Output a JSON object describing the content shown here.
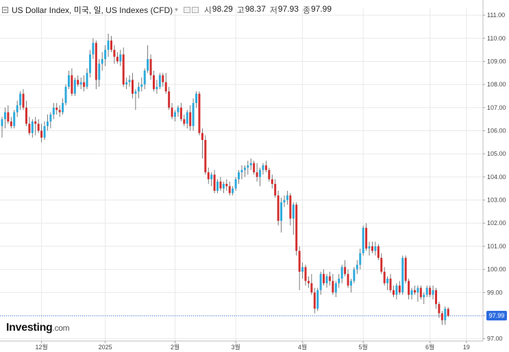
{
  "header": {
    "title": "US Dollar Index, 미국, 일, US Indexes (CFD)",
    "dropdown_glyph": "▾",
    "ohlc": [
      {
        "label": "시",
        "value": "98.29"
      },
      {
        "label": "고",
        "value": "98.37"
      },
      {
        "label": "저",
        "value": "97.93"
      },
      {
        "label": "종",
        "value": "97.99"
      }
    ]
  },
  "logo": {
    "brand": "Investing",
    "suffix": ".com"
  },
  "last_price_label": "97.99",
  "colors": {
    "up": "#2eaadc",
    "down": "#d32f2f",
    "wick": "#555555",
    "grid": "#e8e8e8",
    "price_line": "#2d6cdf"
  },
  "chart_data": {
    "type": "candlestick",
    "title": "US Dollar Index, 미국, 일, US Indexes (CFD)",
    "y_axis": {
      "side": "right",
      "min": 96.9,
      "max": 111.3,
      "ticks": [
        "97.00",
        "98.00",
        "99.00",
        "100.00",
        "101.00",
        "102.00",
        "103.00",
        "104.00",
        "105.00",
        "106.00",
        "107.00",
        "108.00",
        "109.00",
        "110.00",
        "111.00"
      ]
    },
    "x_axis": {
      "ticks": [
        {
          "label": "12월",
          "index": 13
        },
        {
          "label": "2025",
          "index": 34
        },
        {
          "label": "2월",
          "index": 57
        },
        {
          "label": "3월",
          "index": 77
        },
        {
          "label": "4월",
          "index": 99
        },
        {
          "label": "5월",
          "index": 119
        },
        {
          "label": "6월",
          "index": 141
        },
        {
          "label": "19",
          "index": 153
        }
      ]
    },
    "grid": true,
    "last_price": 97.99,
    "candles": [
      [
        106.2,
        106.6,
        105.7,
        106.5
      ],
      [
        106.5,
        107.0,
        106.1,
        106.8
      ],
      [
        106.8,
        107.1,
        106.3,
        106.4
      ],
      [
        106.4,
        106.6,
        106.1,
        106.2
      ],
      [
        106.2,
        106.9,
        106.1,
        106.8
      ],
      [
        106.8,
        107.3,
        106.6,
        107.1
      ],
      [
        107.1,
        107.7,
        106.9,
        107.6
      ],
      [
        107.6,
        107.8,
        106.9,
        107.0
      ],
      [
        107.0,
        107.3,
        106.2,
        106.3
      ],
      [
        106.3,
        106.6,
        105.8,
        105.9
      ],
      [
        105.9,
        106.5,
        105.7,
        106.4
      ],
      [
        106.4,
        106.6,
        105.8,
        106.3
      ],
      [
        106.3,
        106.5,
        105.9,
        106.0
      ],
      [
        106.0,
        106.3,
        105.5,
        105.7
      ],
      [
        105.7,
        106.4,
        105.6,
        106.2
      ],
      [
        106.2,
        106.7,
        106.0,
        106.4
      ],
      [
        106.4,
        106.8,
        106.1,
        106.7
      ],
      [
        106.7,
        107.2,
        106.5,
        107.0
      ],
      [
        107.0,
        107.2,
        106.7,
        106.9
      ],
      [
        106.9,
        107.1,
        106.6,
        106.8
      ],
      [
        106.8,
        107.4,
        106.7,
        107.2
      ],
      [
        107.2,
        108.0,
        107.1,
        107.9
      ],
      [
        107.9,
        108.6,
        107.8,
        108.4
      ],
      [
        108.4,
        108.7,
        107.5,
        107.6
      ],
      [
        107.6,
        108.3,
        107.5,
        108.2
      ],
      [
        108.2,
        108.4,
        107.9,
        108.0
      ],
      [
        108.0,
        108.3,
        107.8,
        108.1
      ],
      [
        108.1,
        108.4,
        107.7,
        107.9
      ],
      [
        107.9,
        108.7,
        107.8,
        108.5
      ],
      [
        108.5,
        109.5,
        108.3,
        109.3
      ],
      [
        109.3,
        110.0,
        109.1,
        109.8
      ],
      [
        109.8,
        109.9,
        107.8,
        108.2
      ],
      [
        108.2,
        109.1,
        107.9,
        108.9
      ],
      [
        108.9,
        109.4,
        108.6,
        109.1
      ],
      [
        109.1,
        109.7,
        108.8,
        109.5
      ],
      [
        109.5,
        110.2,
        109.2,
        109.9
      ],
      [
        109.9,
        110.1,
        109.4,
        109.5
      ],
      [
        109.5,
        109.7,
        108.9,
        109.2
      ],
      [
        109.2,
        109.4,
        108.9,
        109.0
      ],
      [
        109.0,
        109.5,
        108.8,
        109.3
      ],
      [
        109.3,
        109.6,
        107.9,
        108.0
      ],
      [
        108.0,
        108.3,
        107.8,
        108.1
      ],
      [
        108.1,
        108.4,
        107.9,
        108.2
      ],
      [
        108.2,
        108.5,
        107.4,
        107.6
      ],
      [
        107.6,
        107.8,
        106.9,
        107.7
      ],
      [
        107.7,
        108.1,
        107.4,
        107.9
      ],
      [
        107.9,
        108.3,
        107.7,
        108.0
      ],
      [
        108.0,
        108.7,
        107.8,
        108.6
      ],
      [
        108.6,
        109.7,
        108.5,
        109.1
      ],
      [
        109.1,
        109.3,
        108.2,
        108.4
      ],
      [
        108.4,
        108.6,
        107.7,
        107.8
      ],
      [
        107.8,
        108.2,
        107.6,
        107.9
      ],
      [
        107.9,
        108.5,
        107.8,
        108.4
      ],
      [
        108.4,
        108.5,
        107.9,
        108.1
      ],
      [
        108.1,
        108.5,
        107.6,
        107.7
      ],
      [
        107.7,
        107.9,
        106.9,
        107.0
      ],
      [
        107.0,
        107.2,
        106.5,
        106.6
      ],
      [
        106.6,
        106.9,
        106.4,
        106.8
      ],
      [
        106.8,
        107.1,
        106.6,
        107.0
      ],
      [
        107.0,
        107.2,
        106.4,
        106.5
      ],
      [
        106.5,
        106.7,
        106.2,
        106.3
      ],
      [
        106.3,
        106.9,
        106.1,
        106.8
      ],
      [
        106.8,
        107.1,
        106.0,
        106.2
      ],
      [
        106.2,
        107.4,
        106.0,
        107.2
      ],
      [
        107.2,
        107.7,
        107.0,
        107.6
      ],
      [
        107.6,
        107.7,
        105.8,
        105.9
      ],
      [
        105.9,
        106.1,
        104.8,
        105.6
      ],
      [
        105.6,
        105.8,
        104.1,
        104.2
      ],
      [
        104.2,
        104.4,
        103.7,
        103.9
      ],
      [
        103.9,
        104.2,
        103.6,
        104.1
      ],
      [
        104.1,
        104.3,
        103.3,
        103.4
      ],
      [
        103.4,
        103.9,
        103.3,
        103.8
      ],
      [
        103.8,
        104.0,
        103.4,
        103.5
      ],
      [
        103.5,
        103.8,
        103.3,
        103.7
      ],
      [
        103.7,
        103.9,
        103.4,
        103.6
      ],
      [
        103.6,
        103.8,
        103.2,
        103.3
      ],
      [
        103.3,
        103.6,
        103.2,
        103.5
      ],
      [
        103.5,
        104.0,
        103.4,
        103.9
      ],
      [
        103.9,
        104.3,
        103.7,
        104.2
      ],
      [
        104.2,
        104.5,
        103.9,
        104.3
      ],
      [
        104.3,
        104.5,
        104.0,
        104.4
      ],
      [
        104.4,
        104.7,
        104.1,
        104.5
      ],
      [
        104.5,
        104.8,
        104.3,
        104.6
      ],
      [
        104.6,
        104.7,
        104.1,
        104.2
      ],
      [
        104.2,
        104.6,
        103.8,
        104.0
      ],
      [
        104.0,
        104.4,
        103.6,
        104.3
      ],
      [
        104.3,
        104.6,
        104.1,
        104.5
      ],
      [
        104.5,
        104.7,
        104.2,
        104.3
      ],
      [
        104.3,
        104.4,
        103.8,
        103.9
      ],
      [
        103.9,
        104.1,
        103.5,
        103.7
      ],
      [
        103.7,
        103.9,
        103.1,
        103.2
      ],
      [
        103.2,
        103.4,
        101.9,
        102.1
      ],
      [
        102.1,
        103.1,
        101.6,
        102.9
      ],
      [
        102.9,
        103.2,
        102.7,
        103.0
      ],
      [
        103.0,
        103.4,
        102.8,
        103.2
      ],
      [
        103.2,
        103.3,
        101.9,
        102.2
      ],
      [
        102.2,
        102.9,
        101.5,
        102.8
      ],
      [
        102.8,
        102.9,
        100.6,
        100.8
      ],
      [
        100.8,
        101.0,
        99.1,
        99.9
      ],
      [
        99.9,
        100.3,
        99.6,
        100.1
      ],
      [
        100.1,
        100.2,
        99.3,
        99.5
      ],
      [
        99.5,
        99.7,
        99.2,
        99.4
      ],
      [
        99.4,
        99.8,
        98.9,
        99.0
      ],
      [
        99.0,
        99.2,
        98.1,
        98.3
      ],
      [
        98.3,
        99.2,
        98.2,
        99.1
      ],
      [
        99.1,
        99.9,
        98.9,
        99.8
      ],
      [
        99.8,
        100.0,
        99.3,
        99.4
      ],
      [
        99.4,
        99.8,
        99.2,
        99.7
      ],
      [
        99.7,
        99.9,
        99.3,
        99.5
      ],
      [
        99.5,
        99.8,
        98.9,
        99.0
      ],
      [
        99.0,
        99.5,
        98.8,
        99.4
      ],
      [
        99.4,
        99.8,
        99.2,
        99.6
      ],
      [
        99.6,
        100.2,
        99.4,
        100.1
      ],
      [
        100.1,
        100.4,
        99.7,
        99.8
      ],
      [
        99.8,
        100.0,
        99.2,
        99.3
      ],
      [
        99.3,
        99.6,
        99.0,
        99.5
      ],
      [
        99.5,
        100.1,
        99.4,
        100.0
      ],
      [
        100.0,
        100.4,
        99.8,
        100.2
      ],
      [
        100.2,
        100.9,
        100.0,
        100.7
      ],
      [
        100.7,
        101.9,
        100.6,
        101.8
      ],
      [
        101.8,
        102.0,
        100.8,
        100.9
      ],
      [
        100.9,
        101.2,
        100.6,
        101.0
      ],
      [
        101.0,
        101.2,
        100.7,
        100.8
      ],
      [
        100.8,
        101.2,
        100.6,
        101.0
      ],
      [
        101.0,
        101.1,
        100.4,
        100.5
      ],
      [
        100.5,
        100.7,
        99.8,
        99.9
      ],
      [
        99.9,
        100.1,
        99.3,
        99.4
      ],
      [
        99.4,
        99.7,
        99.1,
        99.6
      ],
      [
        99.6,
        99.8,
        99.0,
        99.1
      ],
      [
        99.1,
        99.3,
        98.8,
        98.9
      ],
      [
        98.9,
        99.4,
        98.7,
        99.3
      ],
      [
        99.3,
        99.5,
        98.9,
        99.0
      ],
      [
        99.0,
        100.6,
        98.9,
        100.5
      ],
      [
        100.5,
        100.6,
        99.4,
        99.5
      ],
      [
        99.5,
        99.6,
        98.7,
        98.9
      ],
      [
        98.9,
        99.2,
        98.7,
        99.1
      ],
      [
        99.1,
        99.3,
        98.9,
        99.0
      ],
      [
        99.0,
        99.3,
        98.6,
        99.2
      ],
      [
        99.2,
        99.3,
        98.7,
        98.8
      ],
      [
        98.8,
        99.0,
        98.5,
        98.9
      ],
      [
        98.9,
        99.3,
        98.8,
        99.2
      ],
      [
        99.2,
        99.3,
        98.8,
        98.9
      ],
      [
        98.9,
        99.3,
        98.7,
        99.1
      ],
      [
        99.1,
        99.2,
        98.3,
        98.5
      ],
      [
        98.5,
        98.6,
        97.9,
        98.1
      ],
      [
        98.1,
        98.2,
        97.6,
        97.8
      ],
      [
        97.8,
        98.4,
        97.6,
        98.3
      ],
      [
        98.29,
        98.37,
        97.93,
        97.99
      ]
    ]
  }
}
